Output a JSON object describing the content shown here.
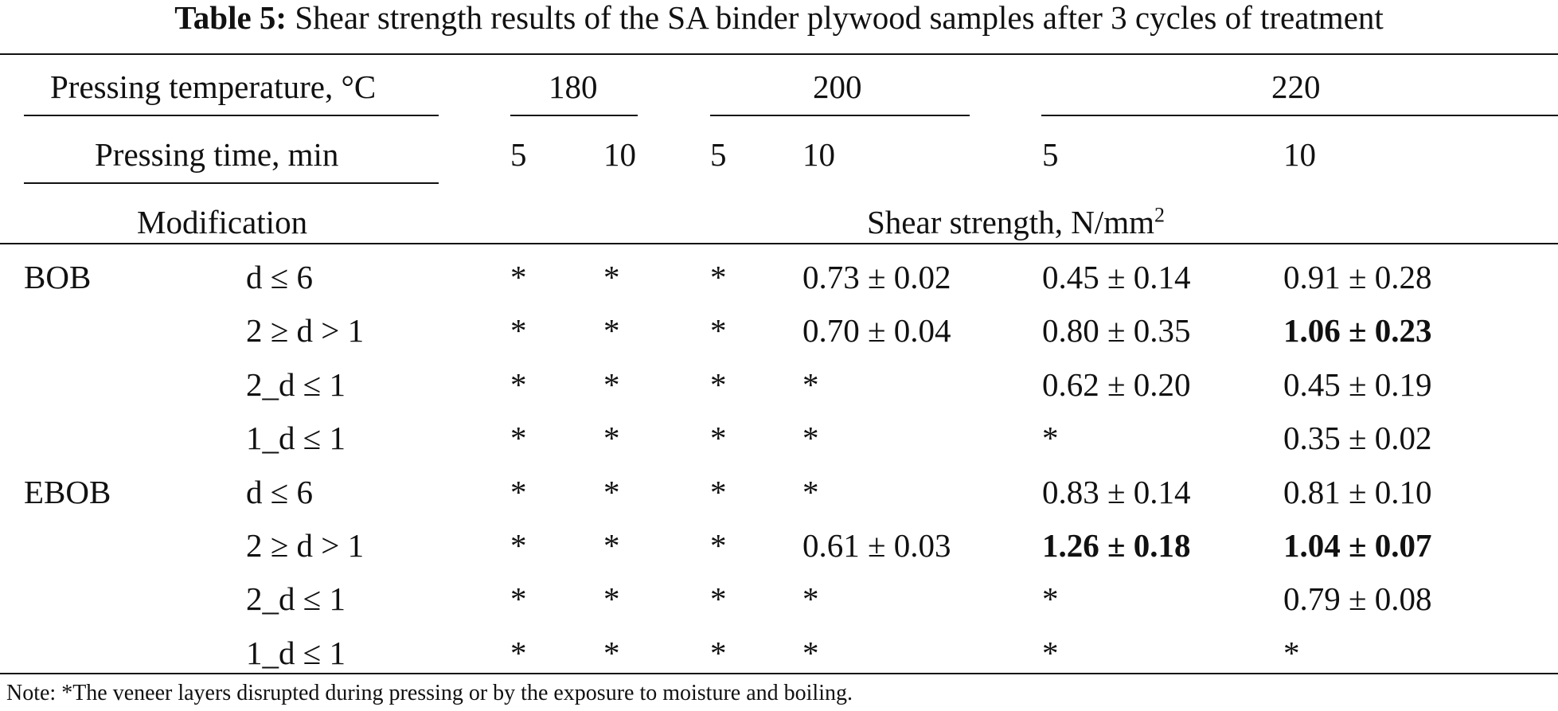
{
  "caption": {
    "label": "Table 5:",
    "text": "Shear strength results of the SA binder plywood samples after 3 cycles of treatment"
  },
  "header": {
    "temperature_label": "Pressing temperature, °C",
    "time_label": "Pressing time, min",
    "modification_label": "Modification",
    "shear_label": "Shear strength, N/mm",
    "shear_unit_sup": "2",
    "temperatures": [
      "180",
      "200",
      "220"
    ],
    "times": [
      "5",
      "10",
      "5",
      "10",
      "5",
      "10"
    ]
  },
  "rows": [
    {
      "group": "BOB",
      "sub": "d ≤ 6",
      "values": [
        "*",
        "*",
        "*",
        "0.73 ± 0.02",
        "0.45 ± 0.14",
        "0.91 ± 0.28"
      ],
      "bold": [
        false,
        false,
        false,
        false,
        false,
        false
      ]
    },
    {
      "group": "",
      "sub": "2 ≥ d > 1",
      "values": [
        "*",
        "*",
        "*",
        "0.70 ± 0.04",
        "0.80 ± 0.35",
        "1.06 ± 0.23"
      ],
      "bold": [
        false,
        false,
        false,
        false,
        false,
        true
      ]
    },
    {
      "group": "",
      "sub": "2_d ≤ 1",
      "values": [
        "*",
        "*",
        "*",
        "*",
        "0.62 ± 0.20",
        "0.45 ± 0.19"
      ],
      "bold": [
        false,
        false,
        false,
        false,
        false,
        false
      ]
    },
    {
      "group": "",
      "sub": "1_d ≤ 1",
      "values": [
        "*",
        "*",
        "*",
        "*",
        "*",
        "0.35 ± 0.02"
      ],
      "bold": [
        false,
        false,
        false,
        false,
        false,
        false
      ]
    },
    {
      "group": "EBOB",
      "sub": "d ≤ 6",
      "values": [
        "*",
        "*",
        "*",
        "*",
        "0.83 ± 0.14",
        "0.81 ± 0.10"
      ],
      "bold": [
        false,
        false,
        false,
        false,
        false,
        false
      ]
    },
    {
      "group": "",
      "sub": "2 ≥ d > 1",
      "values": [
        "*",
        "*",
        "*",
        "0.61 ± 0.03",
        "1.26 ± 0.18",
        "1.04 ± 0.07"
      ],
      "bold": [
        false,
        false,
        false,
        false,
        true,
        true
      ]
    },
    {
      "group": "",
      "sub": "2_d ≤ 1",
      "values": [
        "*",
        "*",
        "*",
        "*",
        "*",
        "0.79 ± 0.08"
      ],
      "bold": [
        false,
        false,
        false,
        false,
        false,
        false
      ]
    },
    {
      "group": "",
      "sub": "1_d ≤ 1",
      "values": [
        "*",
        "*",
        "*",
        "*",
        "*",
        "*"
      ],
      "bold": [
        false,
        false,
        false,
        false,
        false,
        false
      ]
    }
  ],
  "note": "Note: *The veneer layers disrupted during pressing or by the exposure to moisture and boiling."
}
